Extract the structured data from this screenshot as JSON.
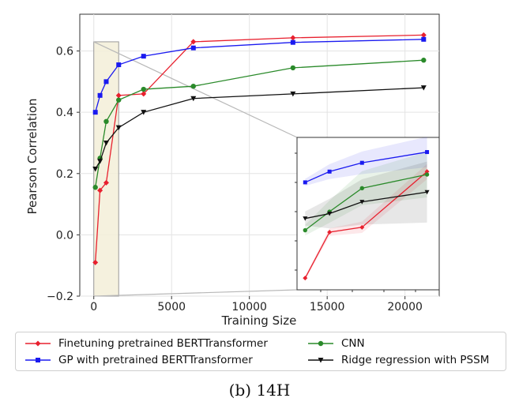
{
  "chart_data": {
    "type": "line",
    "title": "",
    "xlabel": "Training Size",
    "ylabel": "Pearson Correlation",
    "xlim": [
      -900,
      22200
    ],
    "ylim": [
      -0.2,
      0.72
    ],
    "xticks": [
      0,
      5000,
      10000,
      15000,
      20000
    ],
    "yticks": [
      -0.2,
      0.0,
      0.2,
      0.4,
      0.6
    ],
    "xtick_labels": [
      "0",
      "5000",
      "10000",
      "15000",
      "20000"
    ],
    "ytick_labels": [
      "−0.2",
      "0.0",
      "0.2",
      "0.4",
      "0.6"
    ],
    "grid": true,
    "legend_position": "bottom",
    "series": [
      {
        "name": "Finetuning pretrained BERTTransformer",
        "color": "#e8202e",
        "marker": "diamond",
        "x": [
          100,
          400,
          800,
          1600,
          3200,
          6400,
          12800,
          21200
        ],
        "y": [
          -0.09,
          0.145,
          0.17,
          0.455,
          0.46,
          0.63,
          0.643,
          0.652
        ]
      },
      {
        "name": "GP with pretrained BERTTransformer",
        "color": "#1a1af0",
        "marker": "square",
        "x": [
          100,
          400,
          800,
          1600,
          3200,
          6400,
          12800,
          21200
        ],
        "y": [
          0.4,
          0.455,
          0.5,
          0.555,
          0.583,
          0.61,
          0.628,
          0.638
        ]
      },
      {
        "name": "CNN",
        "color": "#2a8a2a",
        "marker": "circle",
        "x": [
          100,
          400,
          800,
          1600,
          3200,
          6400,
          12800,
          21200
        ],
        "y": [
          0.155,
          0.25,
          0.37,
          0.44,
          0.475,
          0.485,
          0.545,
          0.57
        ]
      },
      {
        "name": "Ridge regression with PSSM",
        "color": "#111111",
        "marker": "triangle-down",
        "x": [
          100,
          400,
          800,
          1600,
          3200,
          6400,
          12800,
          21200
        ],
        "y": [
          0.215,
          0.24,
          0.3,
          0.35,
          0.4,
          0.445,
          0.46,
          0.48
        ]
      }
    ],
    "inset": {
      "zoom_region_x": [
        0,
        1600
      ],
      "zoom_region_y": [
        -0.2,
        0.63
      ],
      "note": "zoomed view of small training sizes with shaded confidence bands",
      "x": [
        100,
        400,
        800,
        1600
      ],
      "ylim": [
        -0.15,
        0.63
      ]
    }
  },
  "caption": "(b) 14H"
}
